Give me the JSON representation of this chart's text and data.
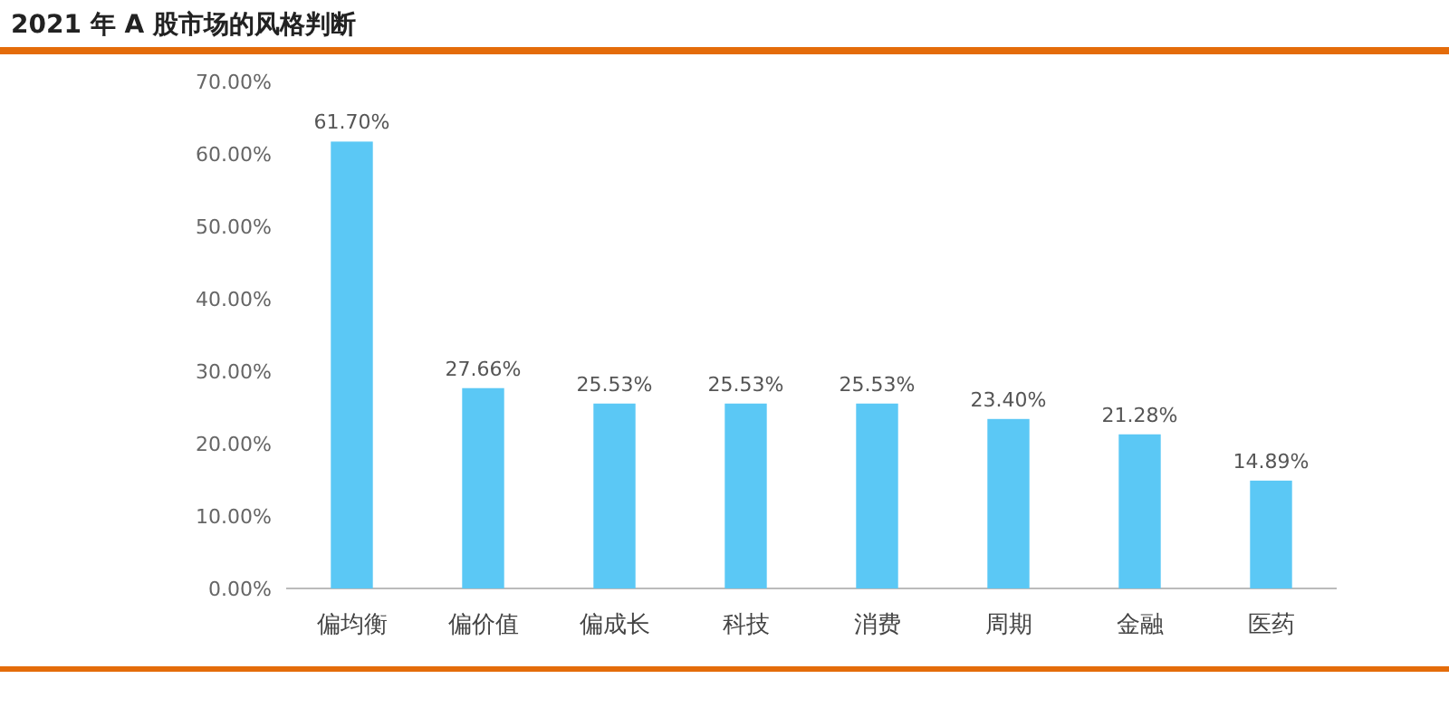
{
  "chart_data": {
    "type": "bar",
    "title": "2021 年 A 股市场的风格判断",
    "categories": [
      "偏均衡",
      "偏价值",
      "偏成长",
      "科技",
      "消费",
      "周期",
      "金融",
      "医药"
    ],
    "values": [
      61.7,
      27.66,
      25.53,
      25.53,
      25.53,
      23.4,
      21.28,
      14.89
    ],
    "value_labels": [
      "61.70%",
      "27.66%",
      "25.53%",
      "25.53%",
      "25.53%",
      "23.40%",
      "21.28%",
      "14.89%"
    ],
    "color": "#5bc8f5",
    "ylim": [
      0,
      70
    ],
    "yticks": [
      {
        "value": 0,
        "label": "0.00%"
      },
      {
        "value": 10,
        "label": "10.00%"
      },
      {
        "value": 20,
        "label": "20.00%"
      },
      {
        "value": 30,
        "label": "30.00%"
      },
      {
        "value": 40,
        "label": "40.00%"
      },
      {
        "value": 50,
        "label": "50.00%"
      },
      {
        "value": 60,
        "label": "60.00%"
      },
      {
        "value": 70,
        "label": "70.00%"
      }
    ],
    "grid": false
  }
}
